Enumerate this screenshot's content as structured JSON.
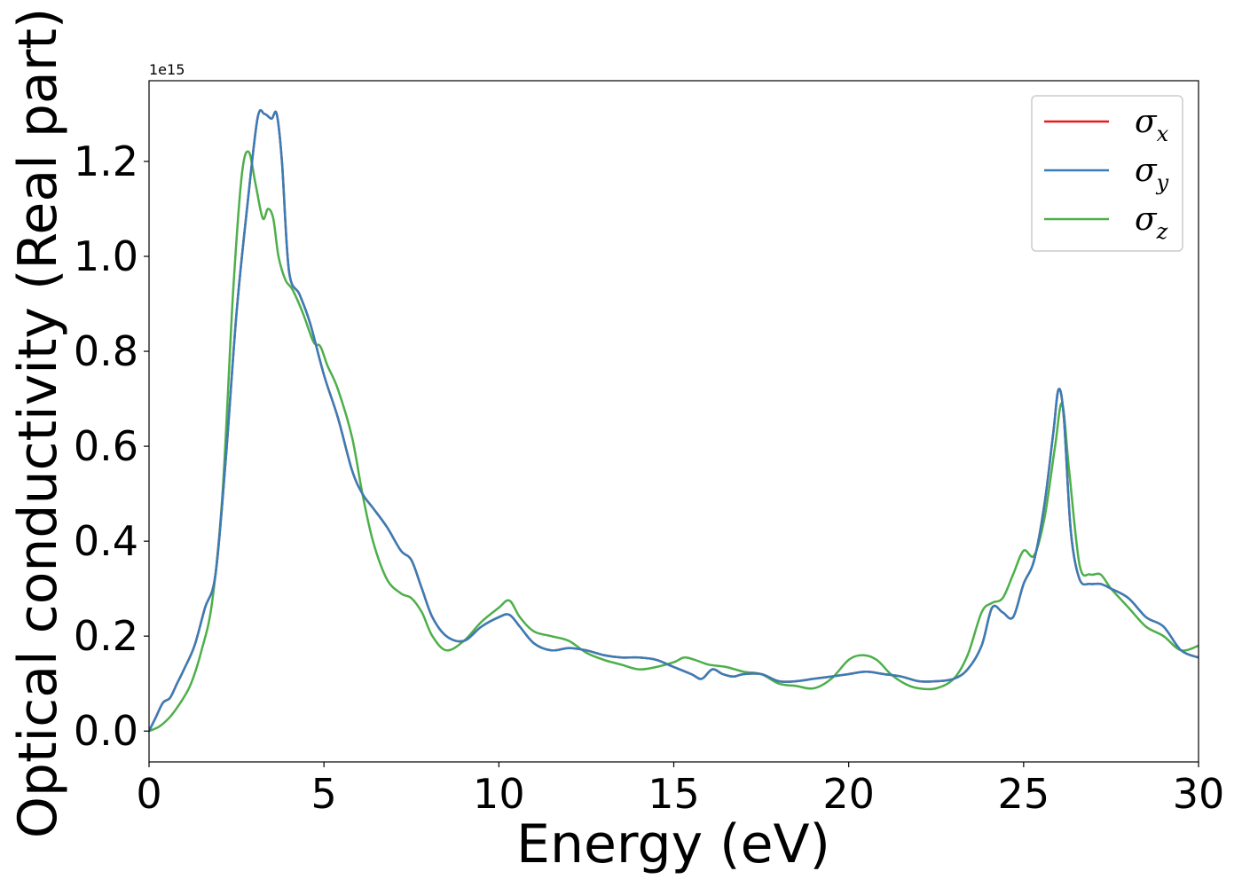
{
  "chart_data": {
    "type": "line",
    "xlabel": "Energy (eV)",
    "ylabel": "Optical conductivity (Real part)",
    "y_offset_label": "1e15",
    "xlim": [
      0,
      30
    ],
    "ylim": [
      -0.065,
      1.37
    ],
    "x_ticks": [
      0,
      5,
      10,
      15,
      20,
      25,
      30
    ],
    "x_tick_labels": [
      "0",
      "5",
      "10",
      "15",
      "20",
      "25",
      "30"
    ],
    "y_ticks": [
      0.0,
      0.2,
      0.4,
      0.6,
      0.8,
      1.0,
      1.2
    ],
    "y_tick_labels": [
      "0.0",
      "0.2",
      "0.4",
      "0.6",
      "0.8",
      "1.0",
      "1.2"
    ],
    "grid": false,
    "legend_position": "top-right",
    "series": [
      {
        "name": "σ_x",
        "legend_base": "σ",
        "legend_sub": "x",
        "color": "#e41a1c",
        "x": [
          0,
          0.2,
          0.4,
          0.6,
          0.8,
          1.0,
          1.3,
          1.6,
          1.9,
          2.2,
          2.5,
          2.8,
          3.1,
          3.3,
          3.5,
          3.65,
          3.8,
          4.0,
          4.3,
          4.6,
          5.0,
          5.4,
          5.8,
          6.1,
          6.4,
          6.8,
          7.2,
          7.5,
          7.8,
          8.1,
          8.5,
          9.0,
          9.5,
          10.0,
          10.3,
          10.6,
          11.0,
          11.5,
          12.0,
          12.5,
          13.0,
          13.5,
          14.0,
          14.5,
          15.0,
          15.5,
          15.8,
          16.1,
          16.4,
          16.7,
          17.0,
          17.5,
          18.0,
          18.5,
          19.0,
          19.5,
          20.0,
          20.5,
          21.0,
          21.5,
          22.0,
          22.5,
          23.0,
          23.4,
          23.8,
          24.1,
          24.4,
          24.7,
          25.0,
          25.3,
          25.6,
          25.85,
          26.0,
          26.15,
          26.35,
          26.6,
          26.9,
          27.2,
          27.5,
          28.0,
          28.5,
          29.0,
          29.5,
          30.0
        ],
        "values": [
          0.0,
          0.03,
          0.06,
          0.07,
          0.1,
          0.13,
          0.18,
          0.26,
          0.33,
          0.58,
          0.88,
          1.1,
          1.29,
          1.3,
          1.29,
          1.3,
          1.2,
          0.97,
          0.92,
          0.86,
          0.75,
          0.66,
          0.55,
          0.5,
          0.47,
          0.43,
          0.38,
          0.36,
          0.3,
          0.24,
          0.2,
          0.19,
          0.22,
          0.24,
          0.245,
          0.22,
          0.185,
          0.17,
          0.175,
          0.17,
          0.16,
          0.155,
          0.155,
          0.15,
          0.135,
          0.12,
          0.11,
          0.13,
          0.12,
          0.115,
          0.12,
          0.12,
          0.105,
          0.105,
          0.11,
          0.115,
          0.12,
          0.125,
          0.12,
          0.115,
          0.105,
          0.105,
          0.11,
          0.13,
          0.18,
          0.26,
          0.25,
          0.24,
          0.31,
          0.36,
          0.48,
          0.63,
          0.72,
          0.66,
          0.42,
          0.32,
          0.31,
          0.31,
          0.3,
          0.28,
          0.24,
          0.22,
          0.17,
          0.155
        ]
      },
      {
        "name": "σ_y",
        "legend_base": "σ",
        "legend_sub": "y",
        "color": "#377eb8",
        "x": [
          0,
          0.2,
          0.4,
          0.6,
          0.8,
          1.0,
          1.3,
          1.6,
          1.9,
          2.2,
          2.5,
          2.8,
          3.1,
          3.3,
          3.5,
          3.65,
          3.8,
          4.0,
          4.3,
          4.6,
          5.0,
          5.4,
          5.8,
          6.1,
          6.4,
          6.8,
          7.2,
          7.5,
          7.8,
          8.1,
          8.5,
          9.0,
          9.5,
          10.0,
          10.3,
          10.6,
          11.0,
          11.5,
          12.0,
          12.5,
          13.0,
          13.5,
          14.0,
          14.5,
          15.0,
          15.5,
          15.8,
          16.1,
          16.4,
          16.7,
          17.0,
          17.5,
          18.0,
          18.5,
          19.0,
          19.5,
          20.0,
          20.5,
          21.0,
          21.5,
          22.0,
          22.5,
          23.0,
          23.4,
          23.8,
          24.1,
          24.4,
          24.7,
          25.0,
          25.3,
          25.6,
          25.85,
          26.0,
          26.15,
          26.35,
          26.6,
          26.9,
          27.2,
          27.5,
          28.0,
          28.5,
          29.0,
          29.5,
          30.0
        ],
        "values": [
          0.0,
          0.03,
          0.06,
          0.07,
          0.1,
          0.13,
          0.18,
          0.26,
          0.33,
          0.58,
          0.88,
          1.1,
          1.29,
          1.3,
          1.29,
          1.3,
          1.2,
          0.97,
          0.92,
          0.86,
          0.75,
          0.66,
          0.55,
          0.5,
          0.47,
          0.43,
          0.38,
          0.36,
          0.3,
          0.24,
          0.2,
          0.19,
          0.22,
          0.24,
          0.245,
          0.22,
          0.185,
          0.17,
          0.175,
          0.17,
          0.16,
          0.155,
          0.155,
          0.15,
          0.135,
          0.12,
          0.11,
          0.13,
          0.12,
          0.115,
          0.12,
          0.12,
          0.105,
          0.105,
          0.11,
          0.115,
          0.12,
          0.125,
          0.12,
          0.115,
          0.105,
          0.105,
          0.11,
          0.13,
          0.18,
          0.26,
          0.25,
          0.24,
          0.31,
          0.36,
          0.48,
          0.63,
          0.72,
          0.66,
          0.42,
          0.32,
          0.31,
          0.31,
          0.3,
          0.28,
          0.24,
          0.22,
          0.17,
          0.155
        ]
      },
      {
        "name": "σ_z",
        "legend_base": "σ",
        "legend_sub": "z",
        "color": "#4daf4a",
        "x": [
          0,
          0.3,
          0.6,
          0.9,
          1.2,
          1.5,
          1.8,
          2.1,
          2.4,
          2.65,
          2.85,
          3.05,
          3.25,
          3.4,
          3.55,
          3.7,
          3.9,
          4.1,
          4.4,
          4.7,
          4.9,
          5.1,
          5.4,
          5.8,
          6.1,
          6.4,
          6.8,
          7.2,
          7.5,
          7.8,
          8.1,
          8.5,
          9.0,
          9.5,
          10.0,
          10.3,
          10.6,
          11.0,
          11.5,
          12.0,
          12.5,
          13.0,
          13.5,
          14.0,
          14.5,
          15.0,
          15.3,
          15.6,
          16.0,
          16.5,
          17.0,
          17.5,
          18.0,
          18.5,
          19.0,
          19.5,
          20.0,
          20.4,
          20.8,
          21.2,
          21.6,
          22.0,
          22.5,
          23.0,
          23.4,
          23.8,
          24.1,
          24.4,
          24.7,
          25.0,
          25.3,
          25.6,
          25.9,
          26.1,
          26.3,
          26.6,
          26.9,
          27.2,
          27.5,
          28.0,
          28.5,
          29.0,
          29.5,
          30.0
        ],
        "values": [
          0.0,
          0.01,
          0.03,
          0.06,
          0.1,
          0.17,
          0.27,
          0.5,
          0.92,
          1.17,
          1.22,
          1.15,
          1.08,
          1.1,
          1.08,
          1.0,
          0.95,
          0.93,
          0.88,
          0.82,
          0.81,
          0.77,
          0.72,
          0.62,
          0.5,
          0.4,
          0.32,
          0.29,
          0.28,
          0.25,
          0.2,
          0.17,
          0.19,
          0.23,
          0.26,
          0.275,
          0.24,
          0.21,
          0.2,
          0.19,
          0.165,
          0.15,
          0.14,
          0.13,
          0.135,
          0.145,
          0.155,
          0.15,
          0.14,
          0.135,
          0.125,
          0.12,
          0.1,
          0.095,
          0.09,
          0.11,
          0.15,
          0.16,
          0.15,
          0.12,
          0.1,
          0.09,
          0.09,
          0.11,
          0.16,
          0.25,
          0.27,
          0.28,
          0.33,
          0.38,
          0.37,
          0.45,
          0.6,
          0.69,
          0.55,
          0.35,
          0.33,
          0.33,
          0.3,
          0.26,
          0.22,
          0.2,
          0.17,
          0.18
        ]
      }
    ]
  }
}
